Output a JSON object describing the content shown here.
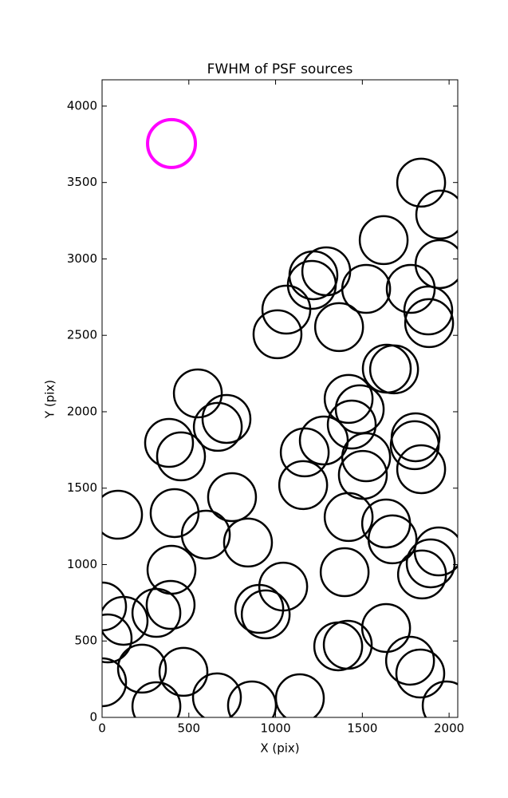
{
  "chart_data": {
    "type": "scatter",
    "title": "FWHM of PSF sources",
    "x_label": "X (pix)",
    "y_label": "Y (pix)",
    "xlim": [
      0,
      2050
    ],
    "ylim": [
      0,
      4172
    ],
    "xticks": [
      0,
      500,
      1000,
      1500,
      2000
    ],
    "yticks": [
      0,
      500,
      1000,
      1500,
      2000,
      2500,
      3000,
      3500,
      4000
    ],
    "series": [
      {
        "color": "#000000",
        "x": [
          0,
          32,
          0,
          124,
          92,
          230,
          313,
          313,
          395,
          400,
          469,
          418,
          386,
          455,
          552,
          598,
          662,
          667,
          717,
          749,
          841,
          864,
          906,
          943,
          1044,
          1011,
          1062,
          1140,
          1159,
          1168,
          1218,
          1209,
          1278,
          1292,
          1361,
          1366,
          1416,
          1398,
          1421,
          1421,
          1439,
          1485,
          1522,
          1503,
          1522,
          1623,
          1641,
          1637,
          1674,
          1637,
          1683,
          1775,
          1779,
          1802,
          1807,
          1834,
          1839,
          1839,
          1844,
          1880,
          1885,
          1894,
          1940,
          1949,
          1945,
          1986
        ],
        "values": [
          726,
          517,
          230,
          632,
          1326,
          319,
          73,
          684,
          736,
          966,
          298,
          1337,
          1796,
          1708,
          2120,
          1196,
          131,
          1901,
          1953,
          1441,
          1144,
          78,
          710,
          674,
          856,
          2507,
          2668,
          125,
          1520,
          1734,
          2893,
          2830,
          1812,
          2919,
          465,
          2554,
          475,
          950,
          1311,
          2084,
          1916,
          2016,
          1702,
          1587,
          2804,
          3123,
          2282,
          1269,
          1165,
          585,
          2277,
          371,
          2804,
          1781,
          1833,
          287,
          3499,
          1624,
          935,
          2663,
          2580,
          1008,
          1086,
          3290,
          2966,
          78
        ]
      },
      {
        "color": "#ff00ff",
        "x": [
          400
        ],
        "values": [
          3755
        ]
      }
    ]
  }
}
